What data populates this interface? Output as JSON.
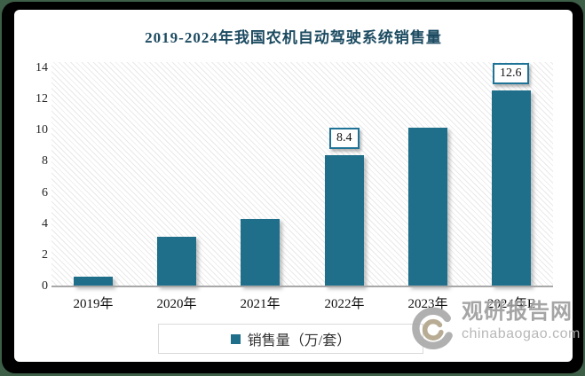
{
  "frame": {
    "outer_background": "#3e5f47",
    "card_background": "#000000",
    "panel_background": "#ffffff"
  },
  "chart_data": {
    "type": "bar",
    "title": "2019-2024年我国农机自动驾驶系统销售量",
    "categories": [
      "2019年",
      "2020年",
      "2021年",
      "2022年",
      "2023年",
      "2024年E"
    ],
    "values": [
      0.6,
      3.2,
      4.3,
      8.4,
      10.2,
      12.6
    ],
    "data_labels": [
      null,
      null,
      null,
      "8.4",
      null,
      "12.6"
    ],
    "yticks": [
      0,
      2,
      4,
      6,
      8,
      10,
      12,
      14
    ],
    "ylim": [
      0,
      14
    ],
    "xlabel": "",
    "ylabel": "",
    "grid": false,
    "plot_hatch_background": true,
    "bar_color": "#1F6F8B",
    "title_color": "#1c4b61",
    "legend_position": "bottom",
    "legend_entries": [
      "销售量（万/套）"
    ]
  },
  "legend": {
    "label": "销售量（万/套）",
    "swatch_color": "#1F6F8B"
  },
  "watermark": {
    "brand": "观研报告网",
    "domain": "chinabaogao.com",
    "color": "#9e9e9e"
  }
}
